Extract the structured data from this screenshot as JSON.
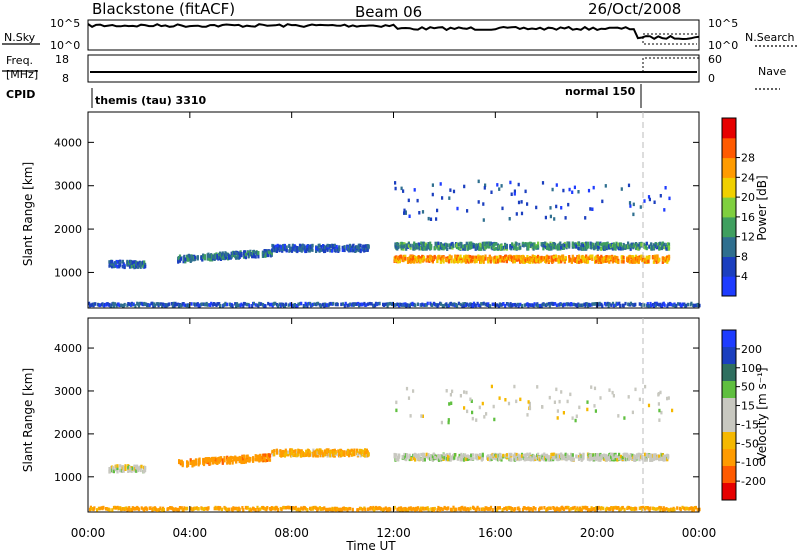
{
  "header": {
    "station": "Blackstone (fitACF)",
    "beam": "Beam 06",
    "date": "26/Oct/2008"
  },
  "noise_panel": {
    "left_label": "N.Sky",
    "left_ticks": [
      "10^5",
      "10^0"
    ],
    "right_label": "N.Search",
    "right_ticks": [
      "10^5",
      "10^0"
    ]
  },
  "freq_panel": {
    "left_label_1": "Freq.",
    "left_label_2": "[MHz]",
    "left_ticks": [
      "18",
      "8"
    ],
    "right_label": "Nave",
    "right_ticks": [
      "60",
      "0"
    ],
    "cpid_label": "CPID"
  },
  "cpid": {
    "first": "themis (tau) 3310",
    "second": "normal 150"
  },
  "x_axis": {
    "label": "Time UT",
    "ticks": [
      "00:00",
      "04:00",
      "08:00",
      "12:00",
      "16:00",
      "20:00",
      "00:00"
    ]
  },
  "colors": {
    "power_scale": [
      "#1e3cff",
      "#1b3fbf",
      "#2f6f8f",
      "#3f9f5f",
      "#7fcf3f",
      "#f0d000",
      "#ff9b00",
      "#ff5a00",
      "#e60000"
    ],
    "velocity_scale": [
      "#e60000",
      "#ff5a00",
      "#ff9b00",
      "#f5b800",
      "#c8c8c0",
      "#c8c8c0",
      "#5fbf3f",
      "#2f6f5f",
      "#1b3fbf",
      "#1e3cff"
    ]
  },
  "chart_data": [
    {
      "type": "heatmap",
      "quantity": "Power",
      "ylabel": "Slant Range [km]",
      "yticks": [
        1000,
        2000,
        3000,
        4000
      ],
      "ylim": [
        180,
        4700
      ],
      "xlim_hours": [
        0,
        24
      ],
      "colorbar": {
        "label": "Power [dB]",
        "ticks": [
          "4",
          "8",
          "12",
          "16",
          "20",
          "24",
          "28"
        ]
      },
      "echo_bands": [
        {
          "t_start": 0.8,
          "t_end": 2.2,
          "range_km": 1180,
          "dominant_db": 6
        },
        {
          "t_start": 3.5,
          "t_end": 7.2,
          "range_km": 1300,
          "dominant_db": 8
        },
        {
          "t_start": 7.2,
          "t_end": 11.0,
          "range_km": 1550,
          "dominant_db": 5
        },
        {
          "t_start": 12.0,
          "t_end": 22.8,
          "range_km": 1300,
          "dominant_db": 24
        },
        {
          "t_start": 12.0,
          "t_end": 22.8,
          "range_km": 1600,
          "dominant_db": 10
        },
        {
          "t_start": 0.0,
          "t_end": 24.0,
          "range_km": 250,
          "dominant_db": 5
        }
      ]
    },
    {
      "type": "heatmap",
      "quantity": "Velocity",
      "ylabel": "Slant Range [km]",
      "yticks": [
        1000,
        2000,
        3000,
        4000
      ],
      "ylim": [
        180,
        4700
      ],
      "xlim_hours": [
        0,
        24
      ],
      "colorbar": {
        "label": "Velocity [m s⁻¹]",
        "ticks": [
          "200",
          "100",
          "50",
          "15",
          "-15",
          "-50",
          "-100",
          "-200"
        ]
      },
      "echo_bands": [
        {
          "t_start": 0.8,
          "t_end": 2.2,
          "range_km": 1180,
          "dominant_ms": 0
        },
        {
          "t_start": 3.5,
          "t_end": 7.2,
          "range_km": 1300,
          "dominant_ms": -60
        },
        {
          "t_start": 7.2,
          "t_end": 11.0,
          "range_km": 1550,
          "dominant_ms": -30
        },
        {
          "t_start": 12.0,
          "t_end": 22.8,
          "range_km": 1450,
          "dominant_ms": 0
        },
        {
          "t_start": 0.0,
          "t_end": 24.0,
          "range_km": 250,
          "dominant_ms": -40
        }
      ]
    }
  ]
}
